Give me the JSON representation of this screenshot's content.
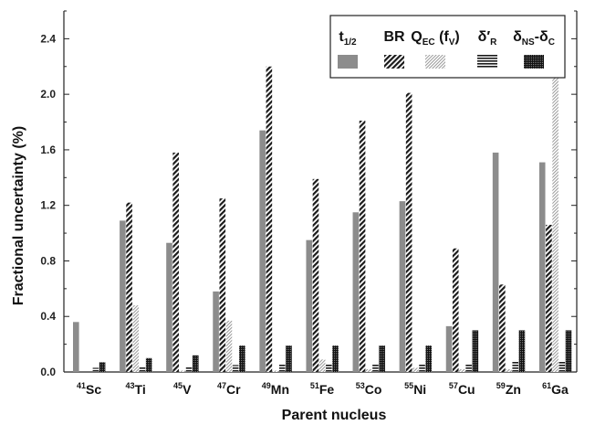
{
  "chart_data": {
    "type": "bar",
    "xlabel": "Parent nucleus",
    "ylabel": "Fractional uncertainty  (%)",
    "ylim": [
      0,
      2.6
    ],
    "yticks": [
      "0.0",
      "0.4",
      "0.8",
      "1.2",
      "1.6",
      "2.0",
      "2.4"
    ],
    "ytick_values": [
      0,
      0.4,
      0.8,
      1.2,
      1.6,
      2.0,
      2.4
    ],
    "categories": [
      {
        "mass": "41",
        "element": "Sc"
      },
      {
        "mass": "43",
        "element": "Ti"
      },
      {
        "mass": "45",
        "element": "V"
      },
      {
        "mass": "47",
        "element": "Cr"
      },
      {
        "mass": "49",
        "element": "Mn"
      },
      {
        "mass": "51",
        "element": "Fe"
      },
      {
        "mass": "53",
        "element": "Co"
      },
      {
        "mass": "55",
        "element": "Ni"
      },
      {
        "mass": "57",
        "element": "Cu"
      },
      {
        "mass": "59",
        "element": "Zn"
      },
      {
        "mass": "61",
        "element": "Ga"
      }
    ],
    "legend_position": "top-right",
    "series": [
      {
        "key": "t_half",
        "legend": {
          "main": "t",
          "sub": "1/2",
          "tail": ""
        },
        "pattern": "solid-gray",
        "values": [
          0.36,
          1.09,
          0.93,
          0.58,
          1.74,
          0.95,
          1.15,
          1.23,
          0.33,
          1.58,
          1.51
        ]
      },
      {
        "key": "br",
        "legend": {
          "main": "BR",
          "sub": "",
          "tail": ""
        },
        "pattern": "diag-bold",
        "values": [
          0.0,
          1.22,
          1.58,
          1.25,
          2.2,
          1.39,
          1.81,
          2.01,
          0.89,
          0.63,
          1.06
        ]
      },
      {
        "key": "qec",
        "legend": {
          "main": "Q",
          "sub": "EC",
          "tail": " (f",
          "sub2": "V",
          "tail2": ")"
        },
        "pattern": "diag-fine",
        "values": [
          0.0,
          0.48,
          0.01,
          0.37,
          0.01,
          0.09,
          0.02,
          0.03,
          0.02,
          0.02,
          2.23
        ]
      },
      {
        "key": "delta_r",
        "legend": {
          "main": "δ′",
          "sub": "R",
          "tail": ""
        },
        "pattern": "horiz",
        "values": [
          0.03,
          0.04,
          0.04,
          0.05,
          0.06,
          0.06,
          0.06,
          0.06,
          0.06,
          0.08,
          0.08
        ]
      },
      {
        "key": "delta_ns_c",
        "legend": {
          "main": "δ",
          "sub": "NS",
          "tail": "-δ",
          "sub2": "C",
          "tail2": ""
        },
        "pattern": "dots",
        "values": [
          0.07,
          0.1,
          0.12,
          0.19,
          0.19,
          0.19,
          0.19,
          0.19,
          0.3,
          0.3,
          0.3
        ]
      }
    ],
    "colors": {
      "solid_gray": "#8c8c8c",
      "ink": "#1a1a1a",
      "fine": "#9a9a9a"
    }
  }
}
